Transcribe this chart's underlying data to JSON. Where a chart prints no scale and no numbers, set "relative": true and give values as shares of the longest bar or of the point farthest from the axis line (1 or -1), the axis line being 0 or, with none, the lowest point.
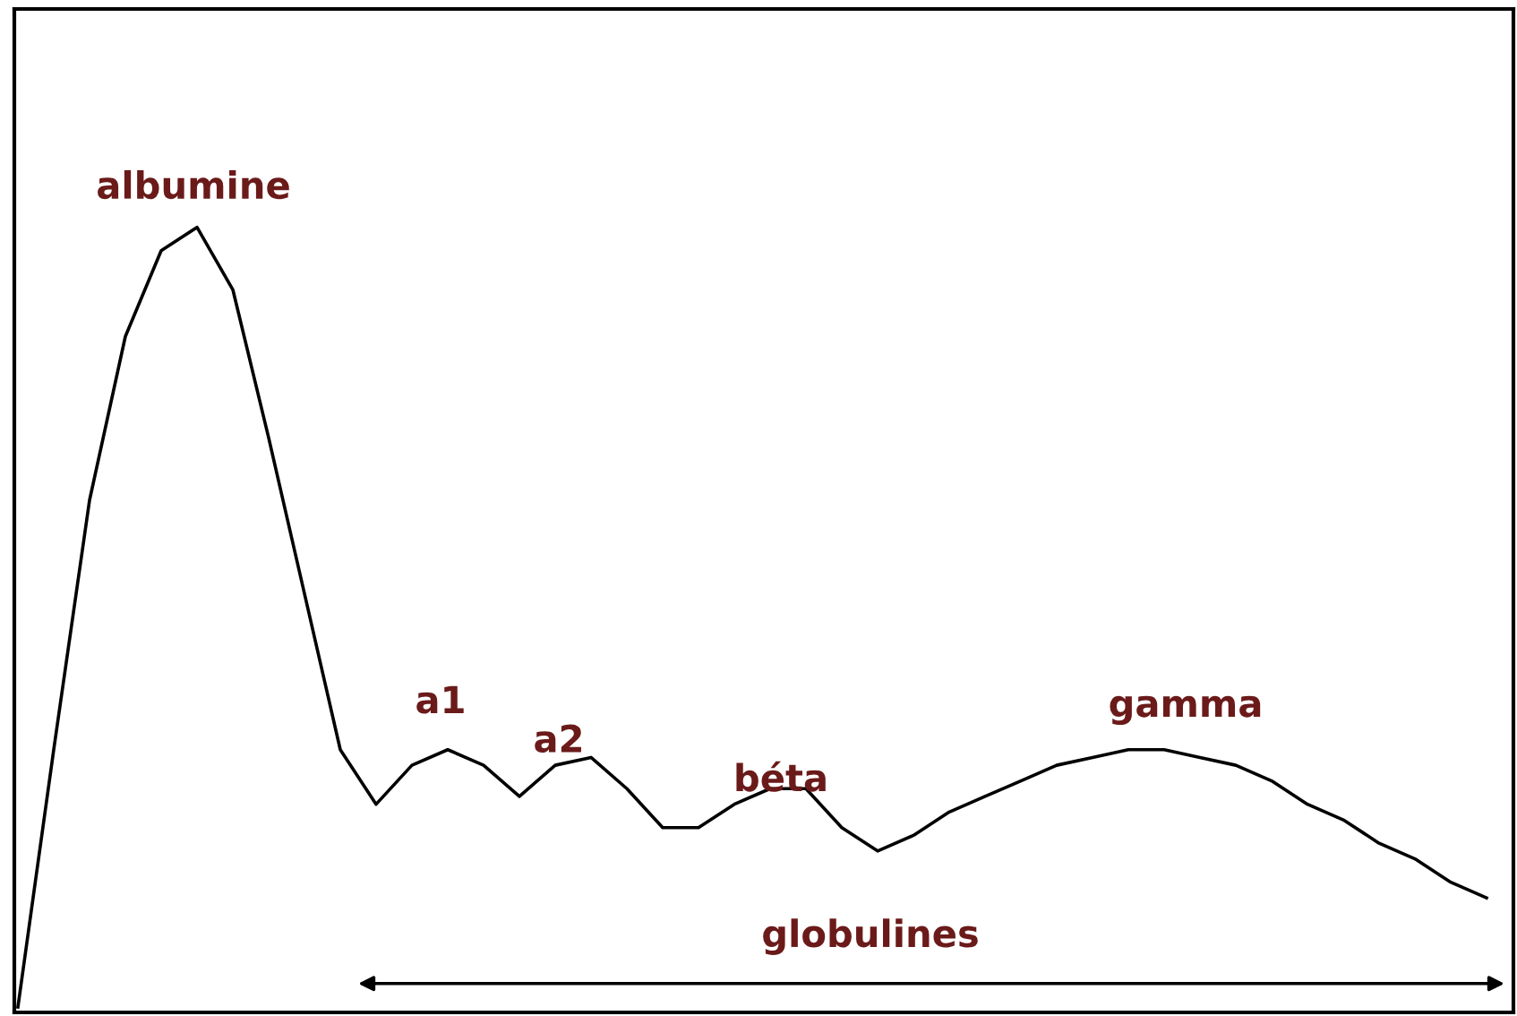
{
  "chart_data": {
    "type": "line",
    "relative": true,
    "color": "#000000",
    "categories": [
      null,
      null,
      null,
      null,
      null,
      null,
      null,
      null,
      null,
      null,
      null,
      null,
      null,
      null,
      null,
      null,
      null,
      null,
      null,
      null,
      null,
      null,
      null,
      null,
      null,
      null,
      null,
      null,
      null,
      null,
      null,
      null,
      null,
      null,
      null,
      null,
      null,
      null,
      null,
      null,
      null,
      null
    ],
    "values": [
      0.0,
      0.33,
      0.65,
      0.86,
      0.97,
      1.0,
      0.92,
      0.73,
      0.53,
      0.33,
      0.26,
      0.31,
      0.33,
      0.31,
      0.27,
      0.31,
      0.32,
      0.28,
      0.23,
      0.23,
      0.26,
      0.28,
      0.28,
      0.23,
      0.2,
      0.22,
      0.25,
      0.27,
      0.29,
      0.31,
      0.32,
      0.33,
      0.33,
      0.32,
      0.31,
      0.29,
      0.26,
      0.24,
      0.21,
      0.19,
      0.16,
      0.14
    ],
    "annotations": [
      "albumine",
      "a1",
      "a2",
      "béta",
      "gamma",
      "globulines"
    ]
  }
}
